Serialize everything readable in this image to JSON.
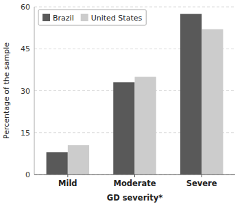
{
  "chart_data": {
    "type": "bar",
    "categories": [
      "Mild",
      "Moderate",
      "Severe"
    ],
    "series": [
      {
        "name": "Brazil",
        "color": "#595959",
        "values": [
          8.0,
          33.0,
          57.5
        ]
      },
      {
        "name": "United States",
        "color": "#cccccc",
        "values": [
          10.5,
          35.0,
          52.0
        ]
      }
    ],
    "xlabel": "GD severity*",
    "ylabel": "Percentage of the sample",
    "ylim": [
      0,
      60
    ],
    "yticks": [
      0,
      15,
      30,
      45,
      60
    ],
    "grid": true,
    "legend": "upper left"
  }
}
